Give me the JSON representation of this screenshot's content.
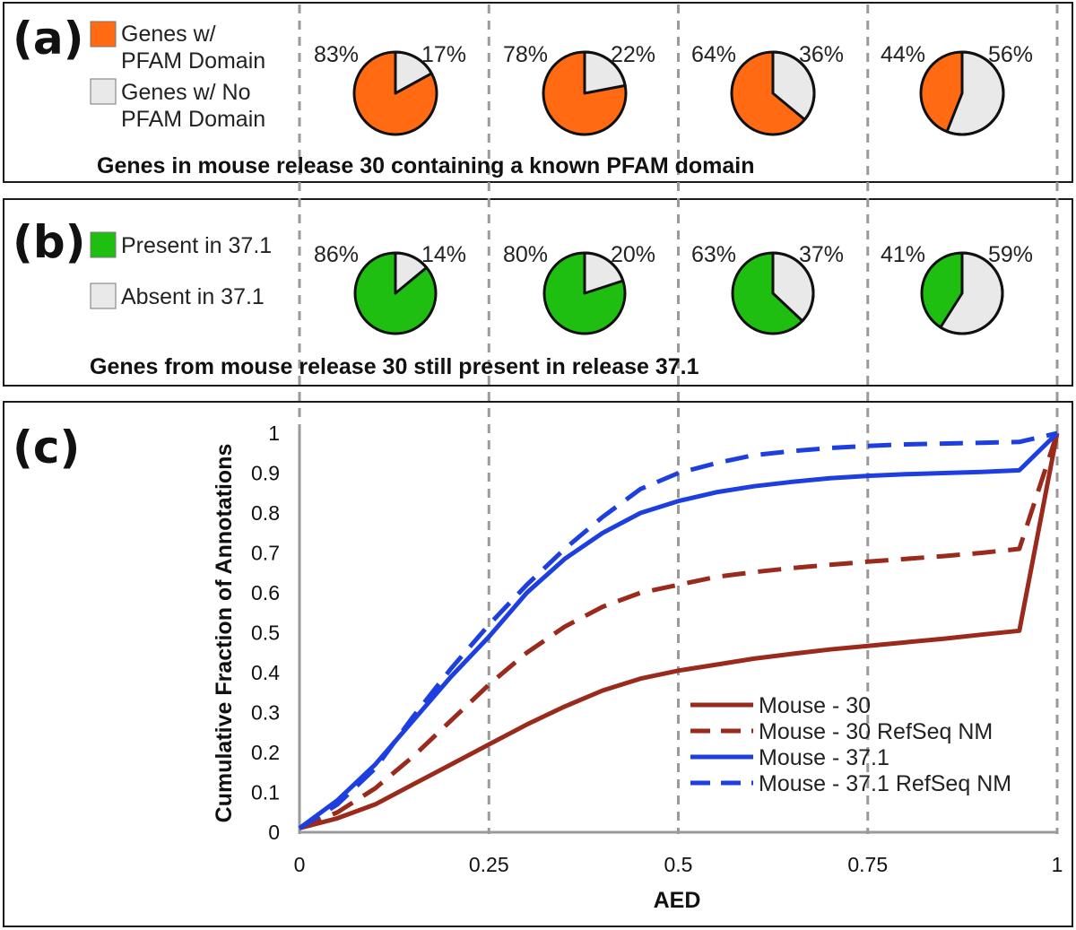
{
  "chart_data": [
    {
      "panel": "(a)",
      "type": "pie",
      "title": "Genes in mouse release 30 containing a known PFAM domain",
      "legend": [
        {
          "label_line1": "Genes w/",
          "label_line2": "PFAM Domain",
          "color": "#ff6a13"
        },
        {
          "label_line1": "Genes w/ No",
          "label_line2": "PFAM Domain",
          "color": "#e9e9e9"
        }
      ],
      "pies": [
        {
          "left_label": "83%",
          "right_label": "17%",
          "values": [
            83,
            17
          ]
        },
        {
          "left_label": "78%",
          "right_label": "22%",
          "values": [
            78,
            22
          ]
        },
        {
          "left_label": "64%",
          "right_label": "36%",
          "values": [
            64,
            36
          ]
        },
        {
          "left_label": "44%",
          "right_label": "56%",
          "values": [
            44,
            56
          ]
        }
      ]
    },
    {
      "panel": "(b)",
      "type": "pie",
      "title": "Genes from mouse release 30 still present in release 37.1",
      "legend": [
        {
          "label_line1": "Present in 37.1",
          "label_line2": "",
          "color": "#1fbf12"
        },
        {
          "label_line1": "Absent in 37.1",
          "label_line2": "",
          "color": "#e9e9e9"
        }
      ],
      "pies": [
        {
          "left_label": "86%",
          "right_label": "14%",
          "values": [
            86,
            14
          ]
        },
        {
          "left_label": "80%",
          "right_label": "20%",
          "values": [
            80,
            20
          ]
        },
        {
          "left_label": "63%",
          "right_label": "37%",
          "values": [
            63,
            37
          ]
        },
        {
          "left_label": "41%",
          "right_label": "59%",
          "values": [
            41,
            59
          ]
        }
      ]
    },
    {
      "panel": "(c)",
      "type": "line",
      "xlabel": "AED",
      "ylabel": "Cumulative Fraction of Annotations",
      "xlim": [
        0,
        1
      ],
      "ylim": [
        0,
        1
      ],
      "xticks": [
        "0",
        "0.25",
        "0.5",
        "0.75",
        "1"
      ],
      "yticks": [
        "0",
        "0.1",
        "0.2",
        "0.3",
        "0.4",
        "0.5",
        "0.6",
        "0.7",
        "0.8",
        "0.9",
        "1"
      ],
      "grid": "vertical dashed",
      "legend_position": "bottom-right",
      "series": [
        {
          "name": "Mouse - 30",
          "color": "#9a2a1c",
          "dashed": false,
          "x": [
            0,
            0.05,
            0.1,
            0.15,
            0.2,
            0.25,
            0.3,
            0.35,
            0.4,
            0.45,
            0.5,
            0.55,
            0.6,
            0.65,
            0.7,
            0.75,
            0.8,
            0.85,
            0.9,
            0.95,
            1
          ],
          "y": [
            0.01,
            0.035,
            0.07,
            0.12,
            0.17,
            0.22,
            0.27,
            0.315,
            0.355,
            0.385,
            0.405,
            0.42,
            0.435,
            0.447,
            0.458,
            0.467,
            0.476,
            0.485,
            0.495,
            0.505,
            1
          ]
        },
        {
          "name": "Mouse - 30 RefSeq NM",
          "color": "#9a2a1c",
          "dashed": true,
          "x": [
            0,
            0.05,
            0.1,
            0.15,
            0.2,
            0.25,
            0.3,
            0.35,
            0.4,
            0.45,
            0.5,
            0.55,
            0.6,
            0.65,
            0.7,
            0.75,
            0.8,
            0.85,
            0.9,
            0.95,
            1
          ],
          "y": [
            0.01,
            0.05,
            0.11,
            0.19,
            0.28,
            0.37,
            0.45,
            0.515,
            0.565,
            0.6,
            0.62,
            0.64,
            0.652,
            0.662,
            0.67,
            0.678,
            0.685,
            0.692,
            0.7,
            0.71,
            1
          ]
        },
        {
          "name": "Mouse - 37.1",
          "color": "#1e3fe0",
          "dashed": false,
          "x": [
            0,
            0.05,
            0.1,
            0.15,
            0.2,
            0.25,
            0.3,
            0.35,
            0.4,
            0.45,
            0.5,
            0.55,
            0.6,
            0.65,
            0.7,
            0.75,
            0.8,
            0.85,
            0.9,
            0.95,
            1
          ],
          "y": [
            0.01,
            0.08,
            0.17,
            0.28,
            0.39,
            0.49,
            0.6,
            0.685,
            0.75,
            0.8,
            0.83,
            0.852,
            0.867,
            0.878,
            0.887,
            0.893,
            0.897,
            0.9,
            0.903,
            0.907,
            1
          ]
        },
        {
          "name": "Mouse - 37.1 RefSeq NM",
          "color": "#1e3fe0",
          "dashed": true,
          "x": [
            0,
            0.05,
            0.1,
            0.15,
            0.2,
            0.25,
            0.3,
            0.35,
            0.4,
            0.45,
            0.5,
            0.55,
            0.6,
            0.65,
            0.7,
            0.75,
            0.8,
            0.85,
            0.9,
            0.95,
            1
          ],
          "y": [
            0.01,
            0.07,
            0.16,
            0.29,
            0.41,
            0.52,
            0.62,
            0.71,
            0.79,
            0.86,
            0.9,
            0.925,
            0.945,
            0.955,
            0.963,
            0.968,
            0.972,
            0.974,
            0.976,
            0.978,
            1
          ]
        }
      ]
    }
  ]
}
